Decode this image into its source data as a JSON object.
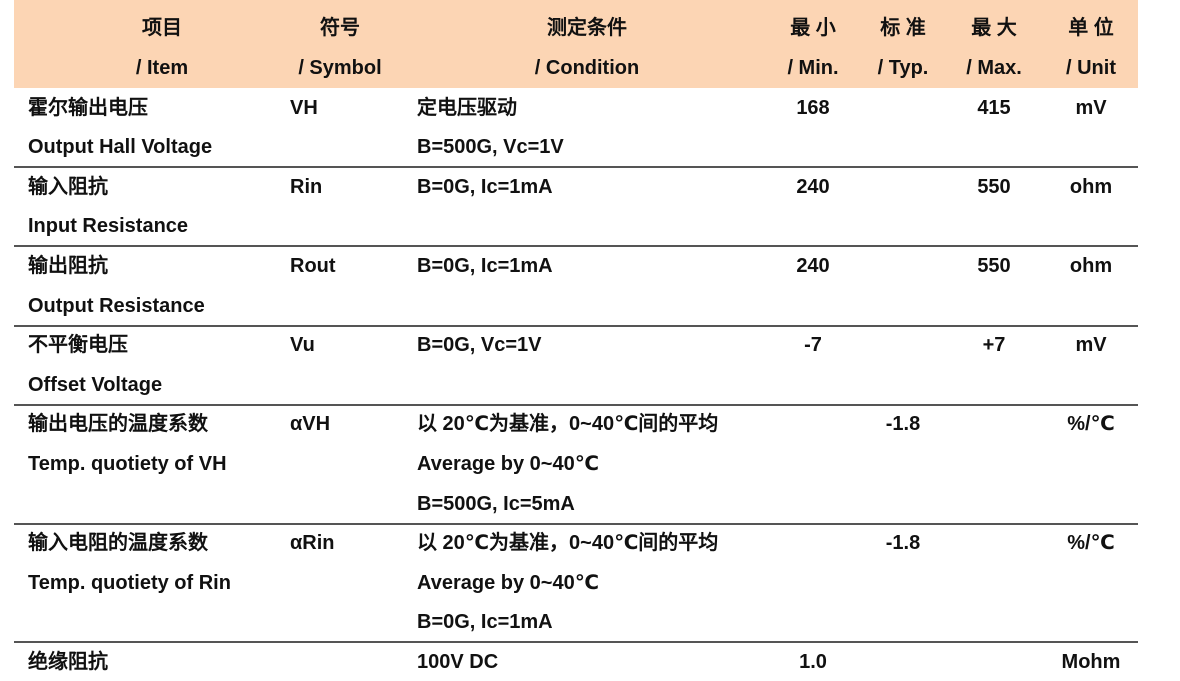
{
  "header": [
    {
      "zh": "项目",
      "en": "/ Item"
    },
    {
      "zh": "符号",
      "en": "/ Symbol"
    },
    {
      "zh": "测定条件",
      "en": "/ Condition"
    },
    {
      "zh": "最 小",
      "en": "/ Min."
    },
    {
      "zh": "标 准",
      "en": "/ Typ."
    },
    {
      "zh": "最 大",
      "en": "/ Max."
    },
    {
      "zh": "单 位",
      "en": "/ Unit"
    }
  ],
  "rows": [
    {
      "item": [
        "霍尔输出电压",
        "Output Hall Voltage"
      ],
      "symbol": "VH",
      "condition": [
        "定电压驱动",
        "B=500G, Vc=1V"
      ],
      "min": "168",
      "max": "415",
      "unit": "mV"
    },
    {
      "item": [
        "输入阻抗",
        "Input Resistance"
      ],
      "symbol": "Rin",
      "condition": [
        "B=0G, Ic=1mA"
      ],
      "min": "240",
      "max": "550",
      "unit": "ohm"
    },
    {
      "item": [
        "输出阻抗",
        "Output Resistance"
      ],
      "symbol": "Rout",
      "condition": [
        "B=0G, Ic=1mA"
      ],
      "min": "240",
      "max": "550",
      "unit": "ohm"
    },
    {
      "item": [
        "不平衡电压",
        "Offset Voltage"
      ],
      "symbol": "Vu",
      "condition": [
        "B=0G, Vc=1V"
      ],
      "min": "-7",
      "max": "+7",
      "unit": "mV"
    },
    {
      "item": [
        "输出电压的温度系数",
        "Temp. quotiety of VH"
      ],
      "symbol": "αVH",
      "condition": [
        "以 20℃为基准，0~40℃间的平均",
        "Average by 0~40℃",
        "B=500G, Ic=5mA"
      ],
      "typ": "-1.8",
      "unit": "%/℃"
    },
    {
      "item": [
        "输入电阻的温度系数",
        "Temp. quotiety of Rin"
      ],
      "symbol": "αRin",
      "condition": [
        "以 20℃为基准，0~40℃间的平均",
        "Average by 0~40℃",
        "B=0G, Ic=1mA"
      ],
      "typ": "-1.8",
      "unit": "%/℃"
    },
    {
      "item": [
        "绝缘阻抗"
      ],
      "condition": [
        "100V DC"
      ],
      "min": "1.0",
      "unit": "Mohm"
    }
  ]
}
